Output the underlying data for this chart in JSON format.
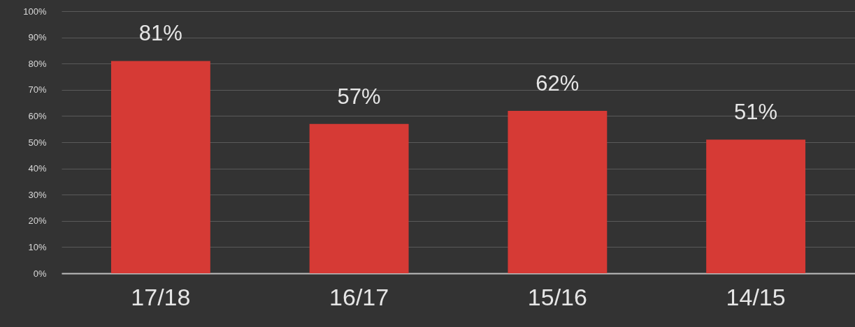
{
  "chart_data": {
    "type": "bar",
    "categories": [
      "17/18",
      "16/17",
      "15/16",
      "14/15"
    ],
    "values": [
      81,
      57,
      62,
      51
    ],
    "color": "#d63a35",
    "value_labels": [
      "81%",
      "57%",
      "62%",
      "51%"
    ],
    "ylim": [
      0,
      100
    ],
    "yticks": [
      {
        "value": 0,
        "label": "0%"
      },
      {
        "value": 10,
        "label": "10%"
      },
      {
        "value": 20,
        "label": "20%"
      },
      {
        "value": 30,
        "label": "30%"
      },
      {
        "value": 40,
        "label": "40%"
      },
      {
        "value": 50,
        "label": "50%"
      },
      {
        "value": 60,
        "label": "60%"
      },
      {
        "value": 70,
        "label": "70%"
      },
      {
        "value": 80,
        "label": "80%"
      },
      {
        "value": 90,
        "label": "90%"
      },
      {
        "value": 100,
        "label": "100%"
      }
    ],
    "grid": "y"
  }
}
